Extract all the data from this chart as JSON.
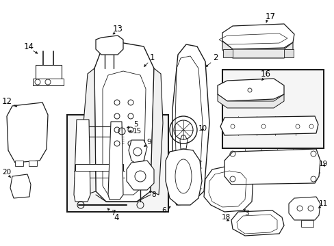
{
  "background_color": "#ffffff",
  "line_color": "#1a1a1a",
  "text_color": "#000000",
  "figsize": [
    4.89,
    3.6
  ],
  "dpi": 100,
  "label_fontsize": 8.5,
  "small_fontsize": 7.5
}
